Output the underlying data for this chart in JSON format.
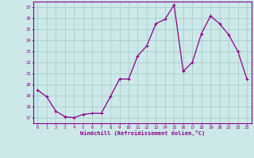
{
  "x": [
    0,
    1,
    2,
    3,
    4,
    5,
    6,
    7,
    8,
    9,
    10,
    11,
    12,
    13,
    14,
    15,
    16,
    17,
    18,
    19,
    20,
    21,
    22,
    23
  ],
  "y": [
    19.5,
    18.9,
    17.6,
    17.1,
    17.0,
    17.3,
    17.4,
    17.4,
    18.9,
    20.5,
    20.5,
    22.6,
    23.5,
    25.5,
    25.9,
    27.2,
    21.2,
    22.0,
    24.6,
    26.2,
    25.5,
    24.5,
    23.0,
    20.5
  ],
  "line_color": "#8b008b",
  "marker": "+",
  "background_color": "#cce8e8",
  "grid_color": "#aacccc",
  "axis_color": "#8b008b",
  "tick_color": "#8b008b",
  "xlabel": "Windchill (Refroidissement éolien,°C)",
  "ylabel_ticks": [
    17,
    18,
    19,
    20,
    21,
    22,
    23,
    24,
    25,
    26,
    27
  ],
  "xlim": [
    -0.5,
    23.5
  ],
  "ylim": [
    16.5,
    27.5
  ],
  "xticks": [
    0,
    1,
    2,
    3,
    4,
    5,
    6,
    7,
    8,
    9,
    10,
    11,
    12,
    13,
    14,
    15,
    16,
    17,
    18,
    19,
    20,
    21,
    22,
    23
  ]
}
